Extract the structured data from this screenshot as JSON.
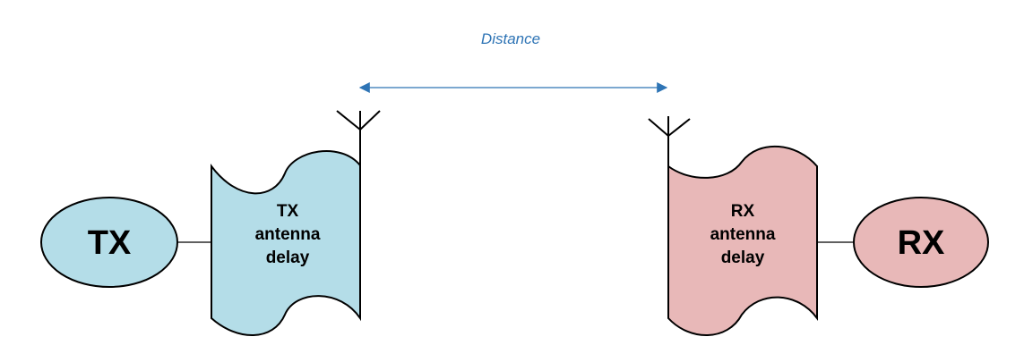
{
  "distance": {
    "label": "Distance"
  },
  "tx": {
    "node_label": "TX",
    "delay_lines": [
      "TX",
      "antenna",
      "delay"
    ]
  },
  "rx": {
    "node_label": "RX",
    "delay_lines": [
      "RX",
      "antenna",
      "delay"
    ]
  },
  "colors": {
    "tx_fill": "#b4dde8",
    "rx_fill": "#e8b8b8",
    "arrow": "#2e74b5",
    "line": "#000000"
  }
}
